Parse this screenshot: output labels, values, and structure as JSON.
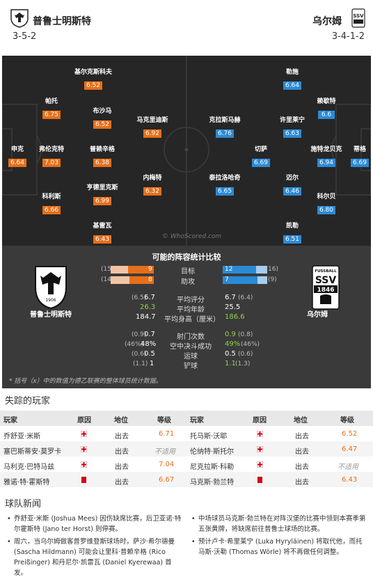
{
  "header": {
    "home_name": "普鲁士明斯特",
    "home_formation": "3-5-2",
    "away_name": "乌尔姆",
    "away_formation": "3-4-1-2"
  },
  "home_players": [
    {
      "name": "基尔克斯科夫",
      "rating": "6.52"
    },
    {
      "name": "帕托",
      "rating": "6.75"
    },
    {
      "name": "布沙马",
      "rating": "6.52"
    },
    {
      "name": "马克里迪斯",
      "rating": "6.92"
    },
    {
      "name": "申克",
      "rating": "6.64"
    },
    {
      "name": "弗伦克特",
      "rating": "7.03"
    },
    {
      "name": "普赖辛格",
      "rating": "6.38"
    },
    {
      "name": "内梅特",
      "rating": "6.32"
    },
    {
      "name": "科利斯",
      "rating": "6.66"
    },
    {
      "name": "亨德里克斯",
      "rating": "6.99"
    },
    {
      "name": "基雷瓦",
      "rating": "6.43"
    }
  ],
  "away_players": [
    {
      "name": "勒施",
      "rating": "6.64"
    },
    {
      "name": "赖歇特",
      "rating": "6.6"
    },
    {
      "name": "克拉斯马赫",
      "rating": "6.76"
    },
    {
      "name": "许里莱宁",
      "rating": "6.63"
    },
    {
      "name": "切萨",
      "rating": "6.69"
    },
    {
      "name": "施特龙贝克",
      "rating": "6.94"
    },
    {
      "name": "蒂格",
      "rating": "6.69"
    },
    {
      "name": "泰拉洛哈奇",
      "rating": "6.65"
    },
    {
      "name": "迈尔",
      "rating": "6.46"
    },
    {
      "name": "科尔贝",
      "rating": "6.80"
    },
    {
      "name": "凯勒",
      "rating": "6.51"
    }
  ],
  "pitch_watermark": "© WhoScored.com",
  "comparison": {
    "title": "可能的阵容统计比较",
    "home_name": "普鲁士明斯特",
    "away_name": "乌尔姆",
    "away_crest_text": [
      "FUSSBALL",
      "SSV",
      "1846"
    ],
    "home_crest_text": "1906",
    "goals": {
      "label": "目标",
      "home": "9",
      "home_season": "(15",
      "away": "12",
      "away_season": "16)"
    },
    "assists": {
      "label": "助攻",
      "home": "8",
      "home_season": "(14",
      "away": "7",
      "away_season": "(9)"
    },
    "goals_values": {
      "home": 9,
      "home_season": 15,
      "away": 12,
      "away_season": 16
    },
    "assists_values": {
      "home": 8,
      "home_season": 14,
      "away": 7,
      "away_season": 9
    },
    "rating": {
      "label": "平均评分",
      "home_season": "(6.5)",
      "home": "6.7",
      "away": "6.7",
      "away_season": "(6.4)"
    },
    "age": {
      "label": "平均年龄",
      "home": "26.3",
      "away": "25.5"
    },
    "height": {
      "label": "平均身高（厘米）",
      "home": "184.7",
      "away": "186.6"
    },
    "shots": {
      "label": "射门次数",
      "home_season": "(0.9)",
      "home": "0.7",
      "away": "0.9",
      "away_season": "(0.8)"
    },
    "aerial": {
      "label": "空中决斗成功",
      "home_season": "(46%)",
      "home": "48%",
      "away": "49%",
      "away_season": "(46%)"
    },
    "dribbles": {
      "label": "运球",
      "home_season": "(0.6)",
      "home": "0.5",
      "away": "0.5",
      "away_season": "(0.6)"
    },
    "tackles": {
      "label": "铲球",
      "home_season": "(1.1)",
      "home": "1",
      "away": "1.1",
      "away_season": "(1.3)"
    },
    "note": "* 括号（x）中的数值为德乙联赛的整体球员统计数据。"
  },
  "missing": {
    "title": "失踪的玩家",
    "headers": {
      "player": "玩家",
      "reason": "原因",
      "status": "地位",
      "rating": "等级"
    },
    "home": [
      {
        "player": "乔舒亚·米斯",
        "reason": "injury",
        "status": "出去",
        "rating": "6.71"
      },
      {
        "player": "塞巴斯蒂安·莫罗卡",
        "reason": "injury",
        "status": "出去",
        "rating": "不适用"
      },
      {
        "player": "马利克·巴特马兹",
        "reason": "injury",
        "status": "出去",
        "rating": "7.04"
      },
      {
        "player": "雅诺·特·霍斯特",
        "reason": "red-card",
        "status": "出去",
        "rating": "6.67"
      }
    ],
    "away": [
      {
        "player": "托马斯·沃耶",
        "reason": "injury",
        "status": "出去",
        "rating": "6.52"
      },
      {
        "player": "伦纳特·斯托尔",
        "reason": "injury",
        "status": "出去",
        "rating": "6.47"
      },
      {
        "player": "尼克拉斯·科勒",
        "reason": "injury",
        "status": "出去",
        "rating": "不适用"
      },
      {
        "player": "马克斯·勃兰特",
        "reason": "red-card",
        "status": "出去",
        "rating": "6.43"
      }
    ]
  },
  "news": {
    "title": "球队新闻",
    "home": [
      "乔舒亚·米斯 (Joshua Mees) 因伤缺席比赛，后卫亚诺·特尔霍斯特 (Jano ter Horst) 则停赛。",
      "周六，当乌尔姆做客普罗维登斯球场时，萨沙·希尔德曼 (Sascha Hildmann) 可能会让里科·普赖辛格 (Rico Preißinger) 和丹尼尔·凯雷瓦 (Daniel Kyerewaa) 首发。"
    ],
    "away": [
      "中场球员马克斯·勃兰特在对阵汉堡的比赛中领到本赛季第五张黄牌，将缺席前往普鲁士球场的比赛。",
      "预计卢卡·希里莱宁 (Luka Hyryläinen) 将取代他，而托马斯·沃勒 (Thomas Wörle) 将不再做任何调整。"
    ]
  },
  "colors": {
    "home": "#e76f19",
    "away": "#2b8ad6",
    "pitch": "#262626",
    "panel": "#3a3a3a"
  }
}
